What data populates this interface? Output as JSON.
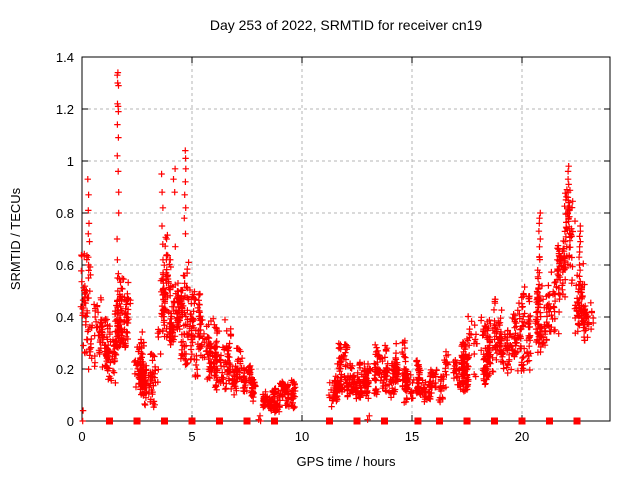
{
  "chart_data": {
    "type": "scatter",
    "title": "Day 253 of 2022, SRMTID for receiver cn19",
    "xlabel": "GPS time / hours",
    "ylabel": "SRMTID / TECUs",
    "xlim": [
      0,
      24
    ],
    "ylim": [
      0,
      1.4
    ],
    "xticks": [
      [
        0,
        "0"
      ],
      [
        5,
        "5"
      ],
      [
        10,
        "10"
      ],
      [
        15,
        "15"
      ],
      [
        20,
        "20"
      ]
    ],
    "yticks": [
      [
        0,
        "0"
      ],
      [
        0.2,
        "0.2"
      ],
      [
        0.4,
        "0.4"
      ],
      [
        0.6,
        "0.6"
      ],
      [
        0.8,
        "0.8"
      ],
      [
        1,
        "1"
      ],
      [
        1.2,
        "1.2"
      ],
      [
        1.4,
        "1.4"
      ]
    ],
    "grid": true,
    "legend": "none",
    "marker": "plus",
    "marker_color": "#ff0000",
    "square_marker_color": "#ff0000",
    "grid_color": "#b5b5b5",
    "border_color": "#000000",
    "seed": 1234,
    "segments": [
      [
        0.0,
        0.35,
        45,
        0.18,
        0.65
      ],
      [
        0.35,
        1.2,
        90,
        0.17,
        0.48
      ],
      [
        1.2,
        1.55,
        40,
        0.14,
        0.38
      ],
      [
        1.55,
        2.2,
        110,
        0.28,
        0.58
      ],
      [
        2.2,
        2.85,
        90,
        0.09,
        0.35
      ],
      [
        2.85,
        3.4,
        60,
        0.05,
        0.26
      ],
      [
        3.4,
        3.8,
        45,
        0.18,
        0.6
      ],
      [
        3.8,
        4.3,
        80,
        0.25,
        0.72
      ],
      [
        4.3,
        5.0,
        110,
        0.2,
        0.62
      ],
      [
        5.0,
        5.55,
        70,
        0.15,
        0.5
      ],
      [
        5.55,
        6.15,
        80,
        0.1,
        0.45
      ],
      [
        6.15,
        6.75,
        70,
        0.1,
        0.42
      ],
      [
        6.75,
        7.35,
        60,
        0.1,
        0.3
      ],
      [
        7.35,
        7.95,
        55,
        0.06,
        0.22
      ],
      [
        7.95,
        9.05,
        90,
        0.03,
        0.15
      ],
      [
        9.05,
        9.85,
        70,
        0.04,
        0.16
      ],
      [
        11.25,
        11.6,
        40,
        0.05,
        0.22
      ],
      [
        11.6,
        12.0,
        60,
        0.1,
        0.3
      ],
      [
        12.0,
        12.65,
        70,
        0.08,
        0.25
      ],
      [
        12.65,
        13.25,
        60,
        0.08,
        0.22
      ],
      [
        13.25,
        13.85,
        70,
        0.1,
        0.3
      ],
      [
        13.85,
        14.65,
        80,
        0.08,
        0.32
      ],
      [
        14.65,
        15.25,
        60,
        0.05,
        0.2
      ],
      [
        15.25,
        16.35,
        110,
        0.07,
        0.24
      ],
      [
        16.35,
        17.55,
        120,
        0.1,
        0.32
      ],
      [
        17.55,
        18.7,
        110,
        0.13,
        0.42
      ],
      [
        18.7,
        19.7,
        100,
        0.15,
        0.48
      ],
      [
        19.7,
        20.45,
        85,
        0.17,
        0.55
      ],
      [
        20.45,
        21.15,
        85,
        0.25,
        0.65
      ],
      [
        21.15,
        21.95,
        90,
        0.32,
        0.72
      ],
      [
        21.95,
        22.35,
        55,
        0.5,
        0.9
      ],
      [
        22.35,
        22.8,
        60,
        0.3,
        0.72
      ],
      [
        22.8,
        23.2,
        35,
        0.28,
        0.5
      ]
    ],
    "spikes": [
      [
        0.3,
        [
          0.93,
          0.87,
          0.81,
          0.76,
          0.72,
          0.69,
          0.63,
          0.6,
          0.55
        ]
      ],
      [
        1.63,
        [
          1.34,
          1.33,
          1.3,
          1.29,
          1.22,
          1.21,
          1.19,
          1.14,
          1.09,
          1.02,
          0.96,
          0.88,
          0.8,
          0.7,
          0.62,
          0.55,
          0.5,
          0.46
        ]
      ],
      [
        3.65,
        [
          0.95,
          0.88,
          0.82,
          0.75,
          0.68,
          0.62
        ]
      ],
      [
        4.2,
        [
          0.97,
          0.93,
          0.88
        ]
      ],
      [
        4.68,
        [
          1.04,
          1.01,
          0.97,
          0.92,
          0.87,
          0.82,
          0.78,
          0.72
        ]
      ],
      [
        20.8,
        [
          0.8,
          0.78,
          0.76,
          0.73,
          0.7,
          0.67
        ]
      ],
      [
        22.1,
        [
          0.98,
          0.96,
          0.93,
          0.91,
          0.88,
          0.86,
          0.84,
          0.82,
          0.8,
          0.78
        ]
      ],
      [
        22.62,
        [
          0.75,
          0.73,
          0.71,
          0.69,
          0.67,
          0.65,
          0.63,
          0.6,
          0.58
        ]
      ]
    ],
    "low_points": [
      [
        0.03,
        0.0
      ],
      [
        0.05,
        0.04
      ],
      [
        8.03,
        0.005
      ],
      [
        8.09,
        0.02
      ],
      [
        8.12,
        0.0
      ],
      [
        12.98,
        0.005
      ],
      [
        13.06,
        0.02
      ]
    ],
    "zero_squares": [
      1.25,
      2.5,
      3.75,
      5,
      6.25,
      7.5,
      8.75,
      11.25,
      12.5,
      13.75,
      15.27,
      16.25,
      17.5,
      18.75,
      20,
      21.25,
      22.5
    ],
    "data_gap_hours": [
      9.85,
      11.25
    ]
  }
}
